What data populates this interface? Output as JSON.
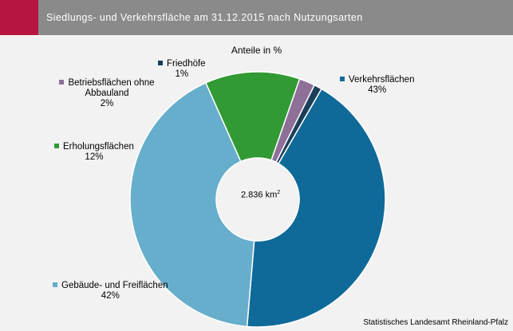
{
  "header": {
    "title": "Siedlungs- und Verkehrsfläche am 31.12.2015 nach Nutzungsarten"
  },
  "chart_data": {
    "type": "pie",
    "subtitle": "Anteile in %",
    "center_value": "2.836",
    "center_unit": "km",
    "center_unit_exp": "2",
    "slices": [
      {
        "name": "Verkehrsflächen",
        "value": 43,
        "label": "43%",
        "color": "#0f6a99"
      },
      {
        "name": "Gebäude- und Freiflächen",
        "value": 42,
        "label": "42%",
        "color": "#66aecb"
      },
      {
        "name": "Erholungsflächen",
        "value": 12,
        "label": "12%",
        "color": "#319a34"
      },
      {
        "name": "Betriebsflächen ohne Abbauland",
        "value": 2,
        "label": "2%",
        "color": "#8e6f98"
      },
      {
        "name": "Friedhöfe",
        "value": 1,
        "label": "1%",
        "color": "#1b3e59"
      }
    ]
  },
  "footer": {
    "source": "Statistisches Landesamt Rheinland-Pfalz"
  }
}
